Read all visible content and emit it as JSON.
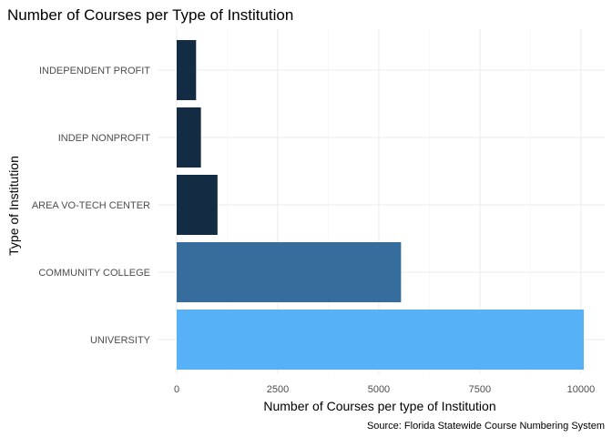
{
  "chart_data": {
    "type": "bar",
    "orientation": "horizontal",
    "title": "Number of Courses per Type of Institution",
    "xlabel": "Number of Courses per type of Institution",
    "ylabel": "Type of Institution",
    "caption": "Source: Florida Statewide Course Numbering System",
    "categories": [
      "UNIVERSITY",
      "COMMUNITY COLLEGE",
      "AREA VO-TECH CENTER",
      "INDEP NONPROFIT",
      "INDEPENDENT PROFIT"
    ],
    "values": [
      10070,
      5550,
      1010,
      600,
      480
    ],
    "bar_colors": [
      "#56b1f7",
      "#366d9c",
      "#132b43",
      "#132b43",
      "#132b43"
    ],
    "xlim": [
      0,
      10070
    ],
    "xticks": [
      0,
      2500,
      5000,
      7500,
      10000
    ],
    "xtick_labels": [
      "0",
      "2500",
      "5000",
      "7500",
      "10000"
    ],
    "grid": true,
    "legend": "none"
  }
}
